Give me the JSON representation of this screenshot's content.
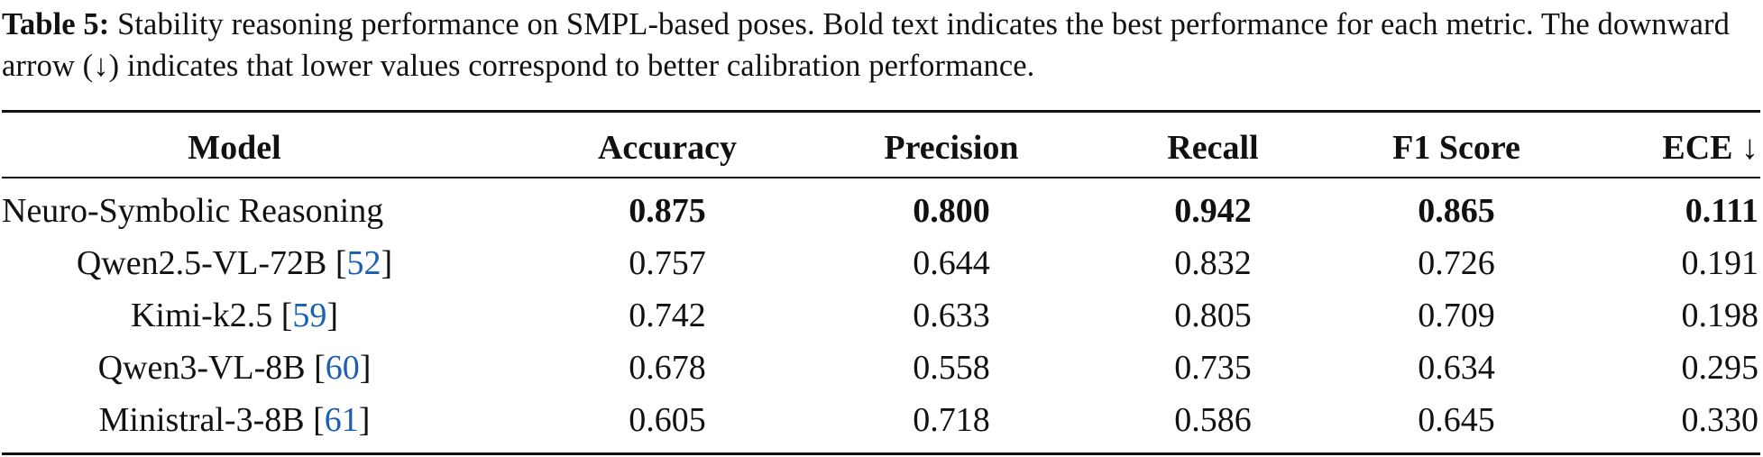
{
  "caption": {
    "label": "Table 5:",
    "text": " Stability reasoning performance on SMPL-based poses. Bold text indicates the best performance for each metric. The downward arrow (↓) indicates that lower values correspond to better calibration performance."
  },
  "table": {
    "headers": [
      "Model",
      "Accuracy",
      "Precision",
      "Recall",
      "F1 Score",
      "ECE ↓"
    ],
    "rows": [
      {
        "model": "Neuro-Symbolic Reasoning",
        "cite": "",
        "values": [
          "0.875",
          "0.800",
          "0.942",
          "0.865",
          "0.111"
        ]
      },
      {
        "model": "Qwen2.5-VL-72B",
        "cite": "52",
        "values": [
          "0.757",
          "0.644",
          "0.832",
          "0.726",
          "0.191"
        ]
      },
      {
        "model": "Kimi-k2.5",
        "cite": "59",
        "values": [
          "0.742",
          "0.633",
          "0.805",
          "0.709",
          "0.198"
        ]
      },
      {
        "model": "Qwen3-VL-8B",
        "cite": "60",
        "values": [
          "0.678",
          "0.558",
          "0.735",
          "0.634",
          "0.295"
        ]
      },
      {
        "model": "Ministral-3-8B",
        "cite": "61",
        "values": [
          "0.605",
          "0.718",
          "0.586",
          "0.645",
          "0.330"
        ]
      }
    ],
    "best_row_index": 0
  },
  "colors": {
    "citation_link": "#1a5fb4",
    "text": "#111111"
  }
}
